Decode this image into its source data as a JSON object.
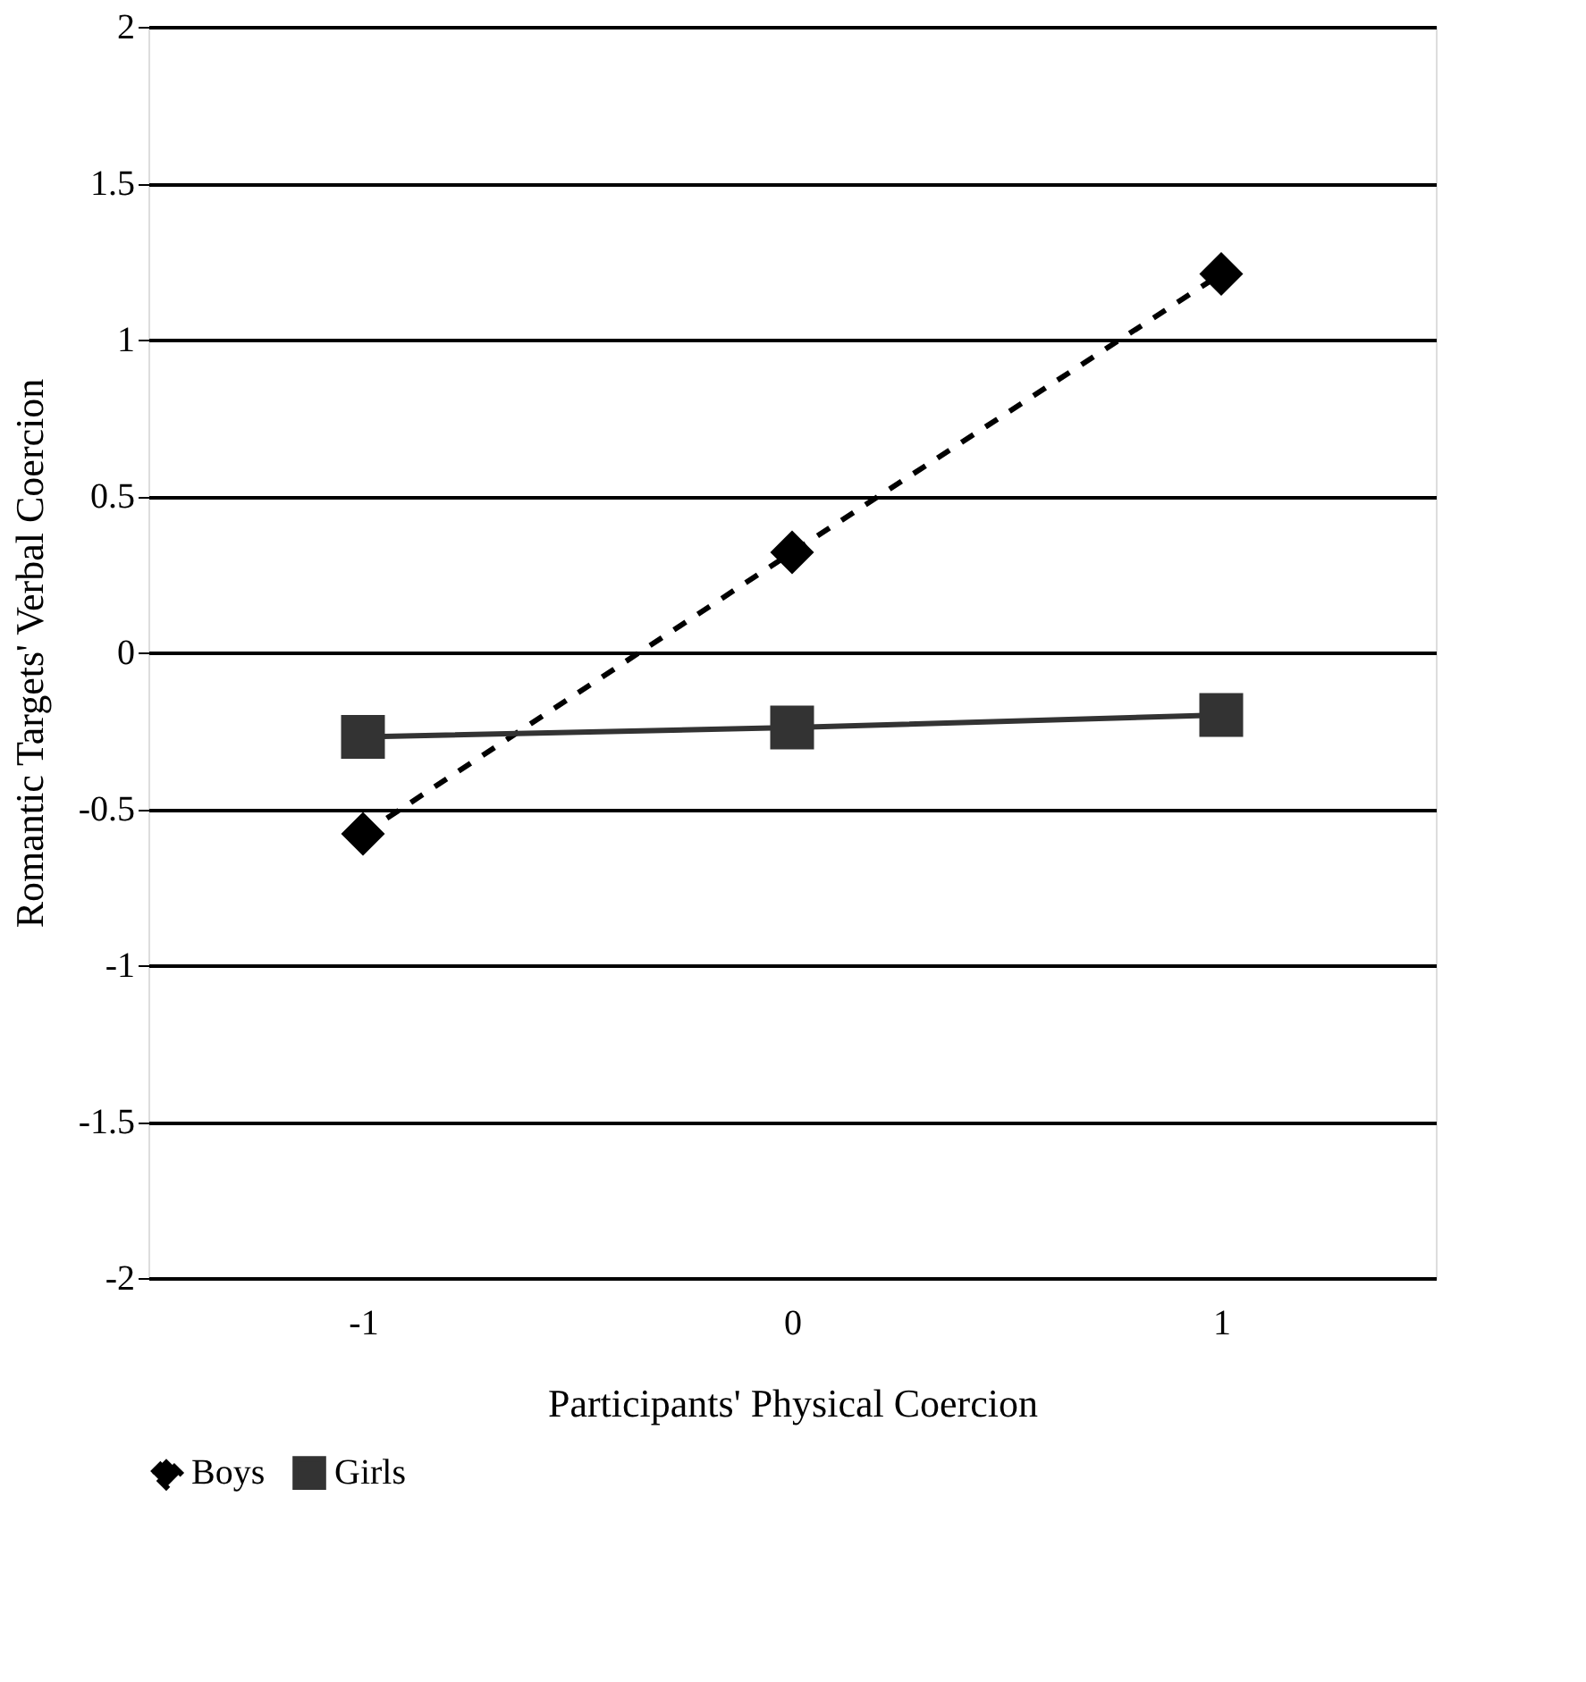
{
  "chart_data": {
    "type": "line",
    "xlabel": "Participants' Physical Coercion",
    "ylabel": "Romantic Targets' Verbal Coercion",
    "categories": [
      "-1",
      "0",
      "1"
    ],
    "series": [
      {
        "name": "Boys",
        "color": "#000000",
        "values": [
          -0.58,
          0.32,
          1.21
        ],
        "marker": "diamond",
        "line_style": "dashed"
      },
      {
        "name": "Girls",
        "color": "#333333",
        "values": [
          -0.27,
          -0.24,
          -0.2
        ],
        "marker": "square",
        "line_style": "solid"
      }
    ],
    "ylim": [
      -2,
      2
    ],
    "yticks": [
      -2,
      -1.5,
      -1,
      -0.5,
      0,
      0.5,
      1,
      1.5,
      2
    ],
    "grid": "y",
    "legend": "bottom"
  }
}
